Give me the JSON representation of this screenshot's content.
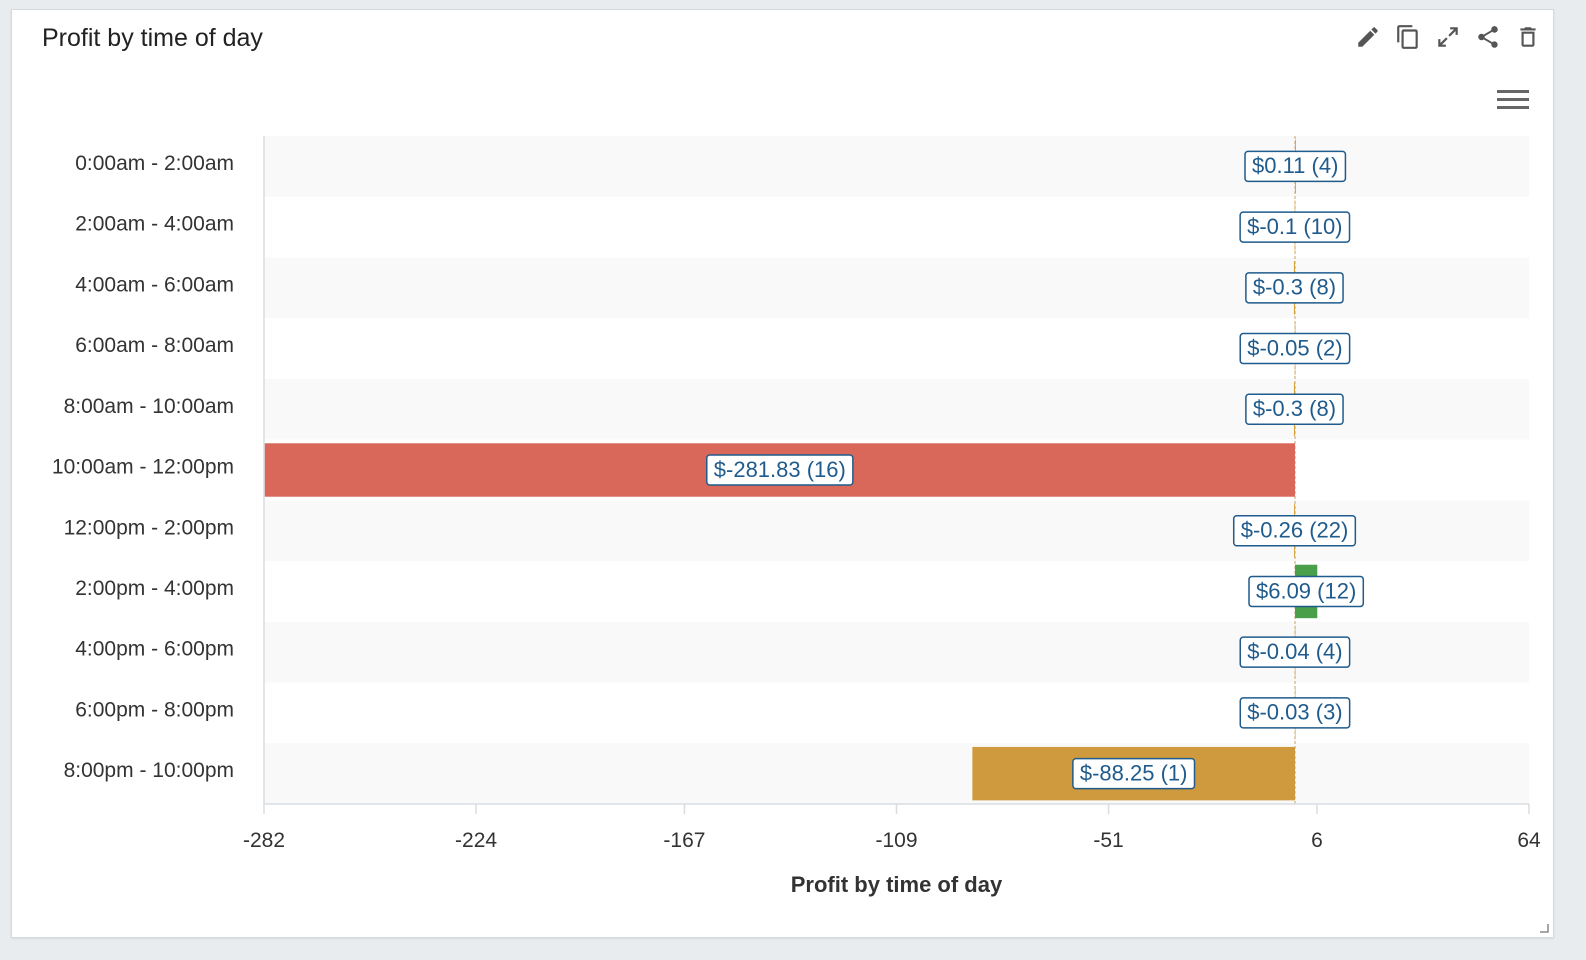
{
  "card": {
    "title": "Profit by time of day"
  },
  "toolbar": {
    "icons": [
      "pencil-icon",
      "copy-icon",
      "expand-icon",
      "share-icon",
      "trash-icon"
    ]
  },
  "chart_data": {
    "type": "bar",
    "orientation": "horizontal",
    "title": "",
    "xlabel": "Profit by time of day",
    "ylabel": "",
    "xlim": [
      -282,
      64
    ],
    "xticks": [
      -282,
      -224,
      -167,
      -109,
      -51,
      6,
      64
    ],
    "grid": false,
    "categories": [
      "0:00am - 2:00am",
      "2:00am - 4:00am",
      "4:00am - 6:00am",
      "6:00am - 8:00am",
      "8:00am - 10:00am",
      "10:00am - 12:00pm",
      "12:00pm - 2:00pm",
      "2:00pm - 4:00pm",
      "4:00pm - 6:00pm",
      "6:00pm - 8:00pm",
      "8:00pm - 10:00pm"
    ],
    "values": [
      0.11,
      -0.1,
      -0.3,
      -0.05,
      -0.3,
      -281.83,
      -0.26,
      6.09,
      -0.04,
      -0.03,
      -88.25
    ],
    "counts": [
      4,
      10,
      8,
      2,
      8,
      16,
      22,
      12,
      4,
      3,
      1
    ],
    "data_labels": [
      "$0.11 (4)",
      "$-0.1 (10)",
      "$-0.3 (8)",
      "$-0.05 (2)",
      "$-0.3 (8)",
      "$-281.83 (16)",
      "$-0.26 (22)",
      "$6.09 (12)",
      "$-0.04 (4)",
      "$-0.03 (3)",
      "$-88.25 (1)"
    ],
    "bar_colors": [
      "#4aa04a",
      "#d6a23a",
      "#d6a23a",
      "#d6a23a",
      "#d6a23a",
      "#d9685b",
      "#d6a23a",
      "#4aa04a",
      "#d6a23a",
      "#d6a23a",
      "#cf9a3e"
    ],
    "colors": {
      "band": "#f9f9f9",
      "axis": "#d8dde1",
      "label_border": "#1f5b8c"
    }
  }
}
